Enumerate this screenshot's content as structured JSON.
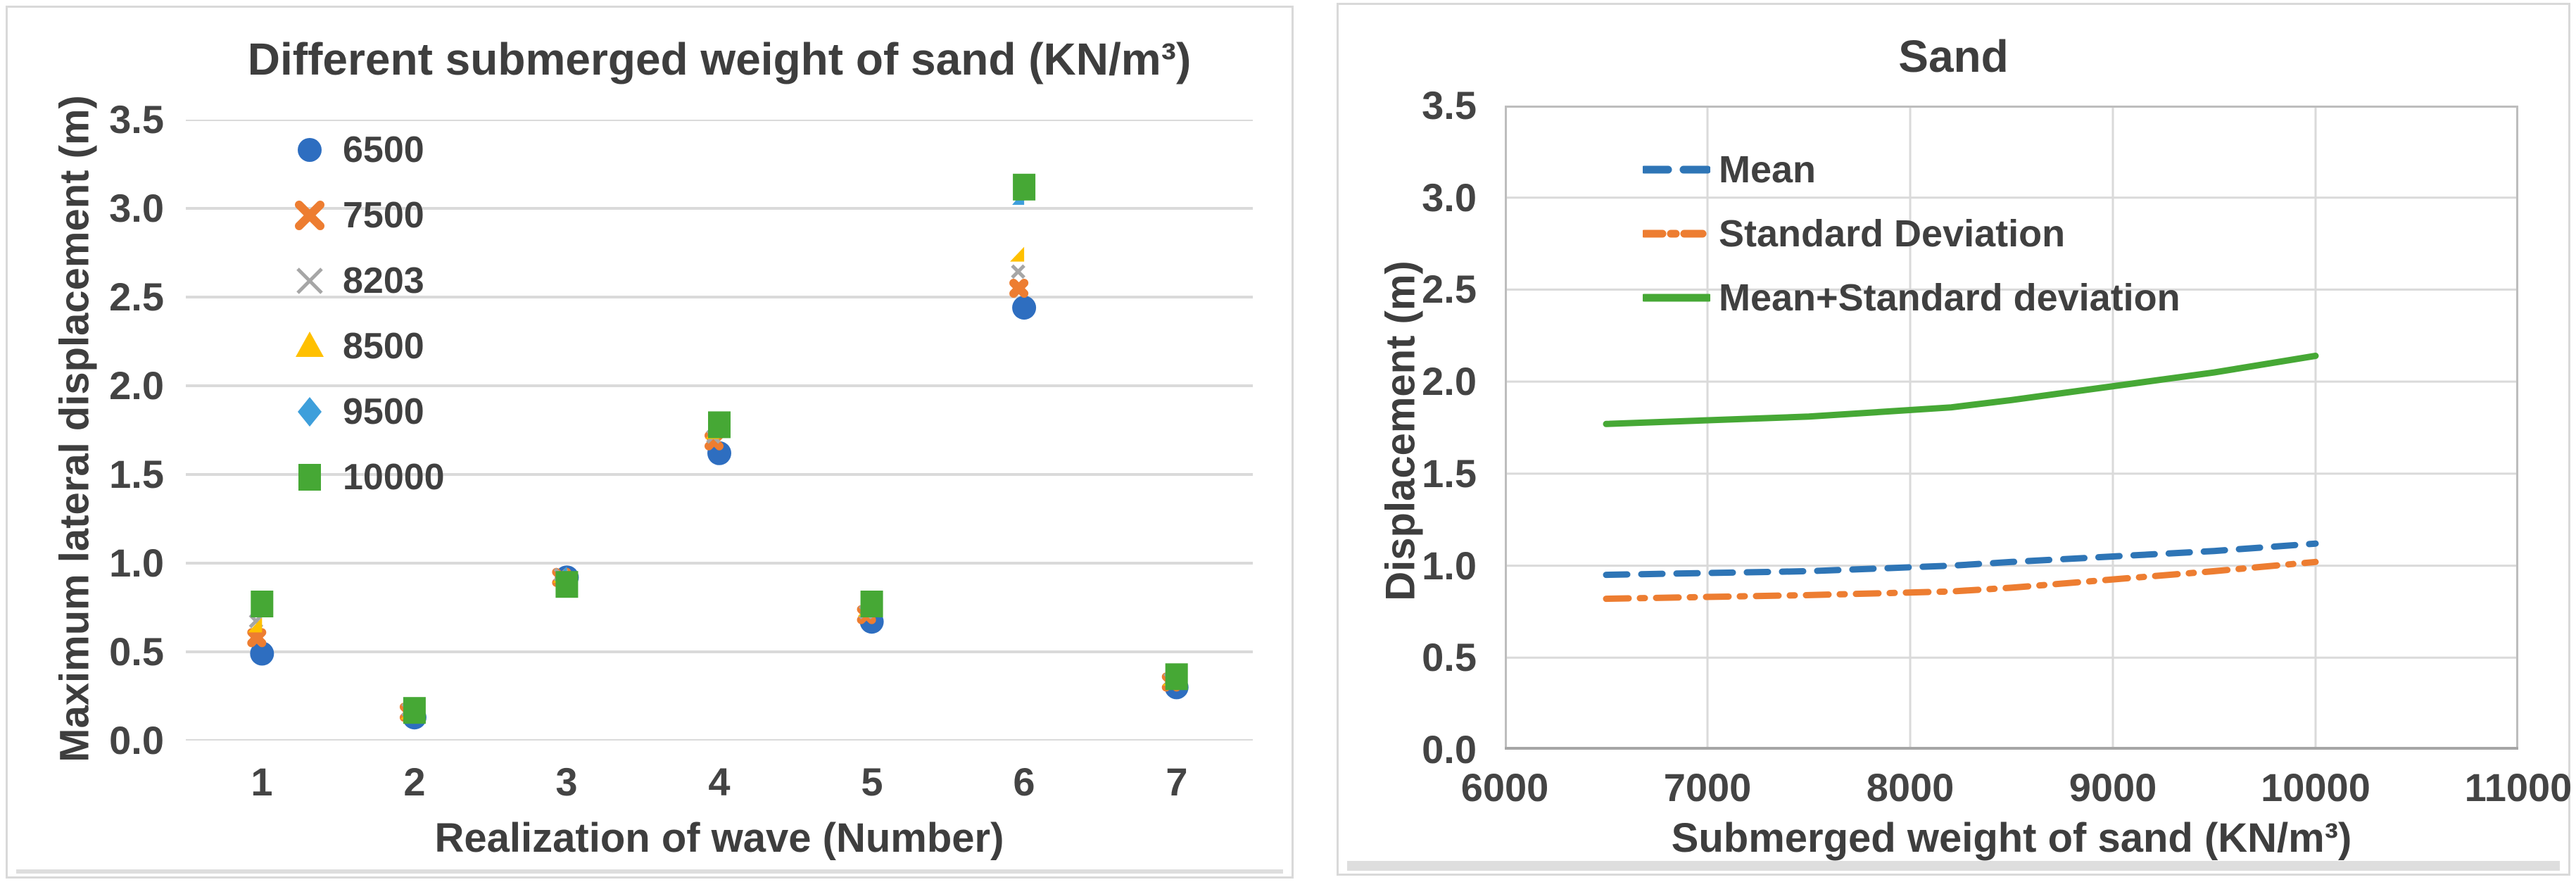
{
  "colors": {
    "text_dark": "#3E3E3E",
    "tick_text": "#444444",
    "gridline": "#DADADA",
    "plot_border": "#BDBDBD",
    "axis_line": "#A6A6A6",
    "box_border": "#D9D9D9"
  },
  "chart_data": [
    {
      "type": "scatter",
      "title": "Different submerged weight of sand (KN/m³)",
      "xlabel": "Realization of wave (Number)",
      "ylabel": "Maximum lateral displacement (m)",
      "categories": [
        "1",
        "2",
        "3",
        "4",
        "5",
        "6",
        "7"
      ],
      "ylim": [
        0,
        3.5
      ],
      "ytick_labels": [
        "0.0",
        "0.5",
        "1.0",
        "1.5",
        "2.0",
        "2.5",
        "3.0",
        "3.5"
      ],
      "grid": "horizontal-only",
      "legend_position": "inside-upper-left",
      "series": [
        {
          "name": "6500",
          "marker": "circle",
          "color": "#2E6EC0",
          "values": [
            0.49,
            0.13,
            0.92,
            1.62,
            0.67,
            2.44,
            0.3
          ]
        },
        {
          "name": "7500",
          "marker": "x-bold",
          "color": "#ED7D31",
          "values": [
            0.55,
            0.13,
            0.89,
            1.66,
            0.68,
            2.52,
            0.3
          ]
        },
        {
          "name": "8203",
          "marker": "x-thin",
          "color": "#A6A6A6",
          "values": [
            0.64,
            0.14,
            0.9,
            1.68,
            0.69,
            2.61,
            0.31
          ]
        },
        {
          "name": "8500",
          "marker": "triangle",
          "color": "#FFC000",
          "values": [
            0.61,
            0.12,
            0.89,
            1.7,
            0.7,
            2.7,
            0.31
          ]
        },
        {
          "name": "9500",
          "marker": "diamond",
          "color": "#3E9FDB",
          "values": [
            0.7,
            0.14,
            0.9,
            1.72,
            0.72,
            3.02,
            0.32
          ]
        },
        {
          "name": "10000",
          "marker": "square",
          "color": "#46A835",
          "values": [
            0.77,
            0.17,
            0.88,
            1.78,
            0.77,
            3.12,
            0.36
          ]
        }
      ]
    },
    {
      "type": "line",
      "title": "Sand",
      "xlabel": "Submerged weight of sand (KN/m³)",
      "ylabel": "Displacement (m)",
      "xlim": [
        6000,
        11000
      ],
      "xtick_labels": [
        "6000",
        "7000",
        "8000",
        "9000",
        "10000",
        "11000"
      ],
      "ylim": [
        0,
        3.5
      ],
      "ytick_labels": [
        "0.0",
        "0.5",
        "1.0",
        "1.5",
        "2.0",
        "2.5",
        "3.0",
        "3.5"
      ],
      "grid": "both",
      "legend_position": "inside-upper-left",
      "x": [
        6500,
        7500,
        8203,
        8500,
        9500,
        10000
      ],
      "series": [
        {
          "name": "Mean",
          "style": "dashed",
          "color": "#2E75B6",
          "values": [
            0.95,
            0.97,
            1.0,
            1.02,
            1.08,
            1.12
          ]
        },
        {
          "name": "Standard Deviation",
          "style": "dash-dot",
          "color": "#ED7D31",
          "values": [
            0.82,
            0.84,
            0.86,
            0.88,
            0.97,
            1.02
          ]
        },
        {
          "name": "Mean+Standard deviation",
          "style": "solid",
          "color": "#46A835",
          "values": [
            1.77,
            1.81,
            1.86,
            1.9,
            2.05,
            2.14
          ]
        }
      ]
    }
  ]
}
